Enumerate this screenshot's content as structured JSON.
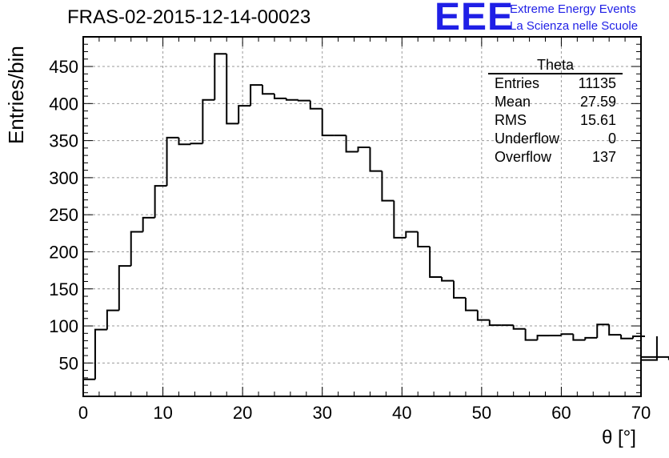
{
  "header": {
    "run_title": "FRAS-02-2015-12-14-00023",
    "logo_mark": "EEE",
    "logo_line1": "Extreme Energy Events",
    "logo_line2": "La Scienza nelle Scuole",
    "logo_color": "#1f1fe6"
  },
  "stats_box": {
    "title": "Theta",
    "rows": [
      {
        "label": "Entries",
        "value": "11135"
      },
      {
        "label": "Mean",
        "value": "27.59"
      },
      {
        "label": "RMS",
        "value": "15.61"
      },
      {
        "label": "Underflow",
        "value": "0"
      },
      {
        "label": "Overflow",
        "value": "137"
      }
    ]
  },
  "chart_data": {
    "type": "bar",
    "style": "step-histogram",
    "title": "",
    "xlabel": "θ [°]",
    "ylabel": "Entries/bin",
    "xlim": [
      0,
      70
    ],
    "ylim": [
      5,
      490
    ],
    "bin_width": 1.5,
    "bin_start": 0,
    "xticks": [
      0,
      10,
      20,
      30,
      40,
      50,
      60,
      70
    ],
    "yticks": [
      50,
      100,
      150,
      200,
      250,
      300,
      350,
      400,
      450
    ],
    "grid": true,
    "line_color": "#000000",
    "values": [
      28,
      95,
      121,
      181,
      227,
      246,
      289,
      354,
      345,
      346,
      405,
      467,
      373,
      397,
      425,
      413,
      407,
      405,
      404,
      393,
      357,
      357,
      335,
      341,
      309,
      269,
      219,
      227,
      207,
      166,
      161,
      138,
      121,
      108,
      101,
      101,
      96,
      81,
      87,
      87,
      89,
      81,
      84,
      102,
      88,
      83,
      86,
      86,
      54,
      58
    ]
  }
}
